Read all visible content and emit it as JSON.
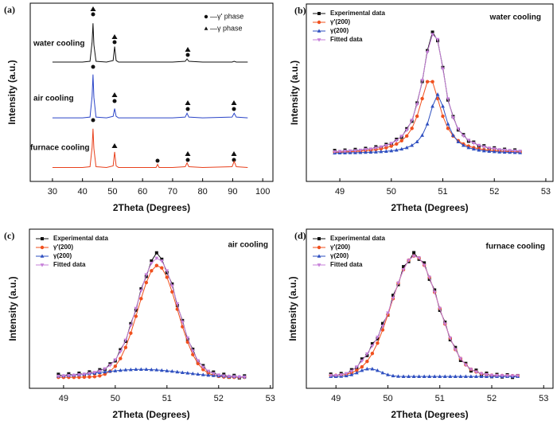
{
  "chart_data": [
    {
      "type": "line",
      "panel_label": "(a)",
      "xlabel": "2Theta (Degrees)",
      "ylabel": "Intensity (a.u.)",
      "xlim": [
        22.6,
        103.4
      ],
      "xticks": [
        30,
        40,
        50,
        60,
        70,
        80,
        90,
        100
      ],
      "ylim": [
        0,
        115
      ],
      "x": [
        30,
        35,
        40,
        42.5,
        43.2,
        43.5,
        43.8,
        44.5,
        48,
        50.2,
        50.7,
        51.2,
        52,
        60,
        64.5,
        65,
        65.5,
        70,
        74.2,
        74.8,
        75.4,
        80,
        89.8,
        90.5,
        91.2,
        95
      ],
      "series": [
        {
          "name": "water cooling",
          "color": "#111111",
          "values": [
            77,
            77,
            77,
            77.5,
            90,
            102,
            88,
            77.5,
            77,
            78,
            87,
            78,
            77,
            77,
            77,
            77,
            77,
            77,
            77.5,
            79,
            77.5,
            77,
            77,
            77.5,
            77,
            77
          ]
        },
        {
          "name": "air cooling",
          "color": "#2b45c8",
          "values": [
            41,
            41,
            41,
            41.5,
            55,
            69,
            54,
            41.5,
            41,
            42,
            47,
            42,
            41,
            41,
            41,
            41,
            41,
            41,
            41.5,
            44,
            41.5,
            41,
            41.5,
            44,
            41.5,
            41
          ]
        },
        {
          "name": "furnace cooling",
          "color": "#e8401c",
          "values": [
            9,
            9,
            9,
            9.5,
            22,
            34,
            21,
            9.5,
            9,
            10,
            19,
            10,
            9,
            9,
            9,
            11,
            9,
            9,
            9.5,
            12,
            9.5,
            9,
            9.5,
            13,
            9.5,
            9
          ]
        }
      ],
      "phase_legend": [
        {
          "marker": "circle",
          "label": "—γ' phase"
        },
        {
          "marker": "triangle",
          "label": "—γ phase"
        }
      ]
    },
    {
      "type": "scatter",
      "panel_label": "(b)",
      "title": "water cooling",
      "xlabel": "2Theta (Degrees)",
      "ylabel": "Intensity (a.u.)",
      "xlim": [
        48.35,
        53.14
      ],
      "xticks": [
        49,
        50,
        51,
        52,
        53
      ],
      "ylim": [
        0,
        102
      ],
      "legend": "upper left",
      "x": [
        48.9,
        49,
        49.1,
        49.2,
        49.3,
        49.4,
        49.5,
        49.6,
        49.7,
        49.8,
        49.9,
        50,
        50.1,
        50.2,
        50.3,
        50.4,
        50.5,
        50.6,
        50.7,
        50.8,
        50.9,
        51,
        51.1,
        51.2,
        51.3,
        51.4,
        51.5,
        51.6,
        51.7,
        51.8,
        51.9,
        52,
        52.1,
        52.2,
        52.3,
        52.4,
        52.5
      ],
      "series": [
        {
          "name": "Experimental data",
          "color": "#111111",
          "marker": "square",
          "values": [
            17.8,
            16.6,
            18.0,
            17.1,
            18.4,
            17.5,
            19.0,
            18.2,
            19.9,
            19.4,
            21.3,
            21.4,
            24.2,
            25.4,
            30.3,
            34.6,
            45.1,
            57.4,
            75.2,
            85.8,
            80.9,
            65.5,
            46.8,
            37.3,
            29.6,
            26.9,
            23.1,
            22.6,
            20.2,
            20.5,
            18.6,
            19.3,
            17.8,
            18.5,
            17.2,
            18.1,
            16.9
          ]
        },
        {
          "name": "γ'(200)",
          "color": "#f0501e",
          "marker": "circle",
          "values": [
            16.8,
            16.9,
            17.0,
            17.1,
            17.2,
            17.4,
            17.7,
            17.9,
            18.3,
            18.8,
            19.4,
            20.3,
            21.5,
            23.4,
            26.1,
            30.5,
            37.5,
            47.6,
            57.3,
            57.3,
            47.6,
            37.5,
            30.5,
            26.1,
            23.4,
            21.5,
            20.3,
            19.4,
            18.8,
            18.3,
            17.9,
            17.7,
            17.4,
            17.2,
            17.1,
            17.0,
            16.9
          ]
        },
        {
          "name": "γ(200)",
          "color": "#2e4fc0",
          "marker": "triangle",
          "values": [
            16.3,
            16.4,
            16.4,
            16.5,
            16.5,
            16.6,
            16.7,
            16.8,
            16.9,
            17.1,
            17.3,
            17.6,
            18.0,
            18.6,
            19.4,
            20.7,
            22.8,
            26.5,
            33.0,
            43.2,
            50.0,
            43.2,
            33.0,
            26.5,
            22.8,
            20.7,
            19.4,
            18.6,
            18.0,
            17.6,
            17.3,
            17.1,
            16.9,
            16.8,
            16.7,
            16.6,
            16.5
          ]
        },
        {
          "name": "Fitted data",
          "color": "#c67fd9",
          "marker": "triangle-down",
          "values": [
            17.1,
            17.3,
            17.4,
            17.6,
            17.7,
            18.0,
            18.4,
            18.7,
            19.2,
            19.9,
            20.7,
            21.9,
            23.5,
            26.0,
            29.5,
            35.2,
            44.3,
            58.1,
            74.3,
            84.5,
            81.6,
            64.7,
            47.5,
            36.6,
            30.2,
            26.2,
            23.7,
            22.0,
            20.8,
            19.9,
            19.2,
            18.8,
            18.3,
            18.0,
            17.8,
            17.6,
            17.4
          ]
        }
      ]
    },
    {
      "type": "scatter",
      "panel_label": "(c)",
      "title": "air cooling",
      "xlabel": "2Theta (Degrees)",
      "ylabel": "Intensity (a.u.)",
      "xlim": [
        48.34,
        53.05
      ],
      "xticks": [
        49,
        50,
        51,
        52,
        53
      ],
      "ylim": [
        0,
        101
      ],
      "legend": "upper left",
      "x": [
        48.9,
        49,
        49.1,
        49.2,
        49.3,
        49.4,
        49.5,
        49.6,
        49.7,
        49.8,
        49.9,
        50,
        50.1,
        50.2,
        50.3,
        50.4,
        50.5,
        50.6,
        50.7,
        50.8,
        50.9,
        51,
        51.1,
        51.2,
        51.3,
        51.4,
        51.5,
        51.6,
        51.7,
        51.8,
        51.9,
        52,
        52.1,
        52.2,
        52.3,
        52.4,
        52.5
      ],
      "series": [
        {
          "name": "Experimental data",
          "color": "#111111",
          "marker": "square",
          "values": [
            8.9,
            7.5,
            9.2,
            8.0,
            9.6,
            8.5,
            10.4,
            9.6,
            11.8,
            12.0,
            15.5,
            17.4,
            24.5,
            29.8,
            41.0,
            49.6,
            63.1,
            71.0,
            80.8,
            86.0,
            81.9,
            73.4,
            66.2,
            52.5,
            43.0,
            30.9,
            24.8,
            16.6,
            14.4,
            10.2,
            10.3,
            7.8,
            8.9,
            7.0,
            8.2,
            6.6,
            7.9
          ]
        },
        {
          "name": "γ'(200)",
          "color": "#f0501e",
          "marker": "circle",
          "values": [
            7.0,
            7.0,
            7.0,
            7.0,
            7.0,
            7.1,
            7.2,
            7.4,
            7.9,
            9.0,
            10.8,
            14.0,
            18.9,
            25.9,
            35.0,
            45.7,
            56.9,
            67.1,
            74.6,
            77.9,
            76.4,
            70.5,
            61.2,
            50.2,
            39.1,
            29.3,
            21.4,
            15.7,
            11.9,
            9.6,
            8.3,
            7.6,
            7.2,
            7.1,
            7.0,
            7.0,
            7.0
          ]
        },
        {
          "name": "γ(200)",
          "color": "#2e4fc0",
          "marker": "triangle",
          "values": [
            7.7,
            7.9,
            8.1,
            8.3,
            8.6,
            8.9,
            9.3,
            9.7,
            10.0,
            10.4,
            10.8,
            11.1,
            11.4,
            11.7,
            11.8,
            12.0,
            12.0,
            12.0,
            11.8,
            11.7,
            11.4,
            11.1,
            10.8,
            10.4,
            10.0,
            9.7,
            9.3,
            8.9,
            8.6,
            8.3,
            8.1,
            7.9,
            7.7,
            7.5,
            7.4,
            7.3,
            7.2
          ]
        },
        {
          "name": "Fitted data",
          "color": "#c67fd9",
          "marker": "triangle-down",
          "values": [
            7.7,
            7.9,
            8.1,
            8.3,
            8.6,
            9.0,
            9.5,
            10.1,
            10.9,
            12.4,
            14.6,
            18.1,
            23.3,
            30.6,
            39.8,
            50.7,
            61.9,
            72.1,
            79.4,
            82.6,
            80.8,
            74.6,
            65.0,
            53.6,
            42.1,
            32.0,
            23.7,
            17.6,
            13.5,
            10.9,
            9.4,
            8.5,
            7.9,
            7.6,
            7.4,
            7.3,
            7.2
          ]
        }
      ]
    },
    {
      "type": "scatter",
      "panel_label": "(d)",
      "title": "furnace cooling",
      "xlabel": "2Theta (Degrees)",
      "ylabel": "Intensity (a.u.)",
      "xlim": [
        48.43,
        53.18
      ],
      "xticks": [
        49,
        50,
        51,
        52,
        53
      ],
      "ylim": [
        0,
        101
      ],
      "legend": "upper left",
      "x": [
        48.9,
        49,
        49.1,
        49.2,
        49.3,
        49.4,
        49.5,
        49.6,
        49.7,
        49.8,
        49.9,
        50,
        50.1,
        50.2,
        50.3,
        50.4,
        50.5,
        50.6,
        50.7,
        50.8,
        50.9,
        51,
        51.1,
        51.2,
        51.3,
        51.4,
        51.5,
        51.6,
        51.7,
        51.8,
        51.9,
        52,
        52.1,
        52.2,
        52.3,
        52.4,
        52.5
      ],
      "series": [
        {
          "name": "Experimental data",
          "color": "#111111",
          "marker": "square",
          "values": [
            9.0,
            7.6,
            9.4,
            8.7,
            11.8,
            12.9,
            18.6,
            20.8,
            28.3,
            31.4,
            41.1,
            46.5,
            59.0,
            65.8,
            77.2,
            80.4,
            86.1,
            81.9,
            79.6,
            69.2,
            62.4,
            49.5,
            42.0,
            30.8,
            25.9,
            17.7,
            15.8,
            11.0,
            11.5,
            8.4,
            9.6,
            7.4,
            8.8,
            7.2,
            8.6,
            6.9,
            8.1
          ]
        },
        {
          "name": "γ'(200)",
          "color": "#f0501e",
          "marker": "circle",
          "values": [
            8.1,
            8.2,
            8.5,
            9.0,
            9.8,
            11.3,
            13.6,
            17.1,
            22.1,
            28.7,
            37.1,
            46.7,
            56.9,
            66.8,
            75.3,
            81.3,
            84.0,
            82.8,
            78.1,
            70.5,
            61.0,
            50.7,
            40.8,
            31.9,
            24.6,
            18.9,
            14.9,
            12.1,
            10.4,
            9.3,
            8.7,
            8.3,
            8.1,
            8.1,
            8.0,
            8.0,
            8.0
          ]
        },
        {
          "name": "γ(200)",
          "color": "#2e4fc0",
          "marker": "triangle",
          "values": [
            7.5,
            7.5,
            7.6,
            7.9,
            8.6,
            9.8,
            11.3,
            12.3,
            12.3,
            11.3,
            9.8,
            8.6,
            7.9,
            7.6,
            7.5,
            7.5,
            7.5,
            7.5,
            7.5,
            7.5,
            7.5,
            7.5,
            7.5,
            7.5,
            7.5,
            7.5,
            7.5,
            7.5,
            7.5,
            7.5,
            7.5,
            7.5,
            7.5,
            7.5,
            7.5,
            7.5,
            7.5
          ]
        },
        {
          "name": "Fitted data",
          "color": "#c67fd9",
          "marker": "triangle-down",
          "values": [
            8.1,
            8.2,
            8.6,
            9.4,
            10.9,
            13.6,
            17.4,
            21.9,
            26.9,
            32.5,
            39.4,
            47.8,
            57.3,
            66.9,
            75.3,
            81.3,
            84.0,
            82.8,
            78.1,
            70.5,
            61.0,
            50.7,
            40.8,
            31.9,
            24.6,
            18.9,
            14.9,
            12.1,
            10.4,
            9.3,
            8.7,
            8.3,
            8.1,
            8.1,
            8.0,
            8.0,
            8.0
          ]
        }
      ]
    }
  ]
}
